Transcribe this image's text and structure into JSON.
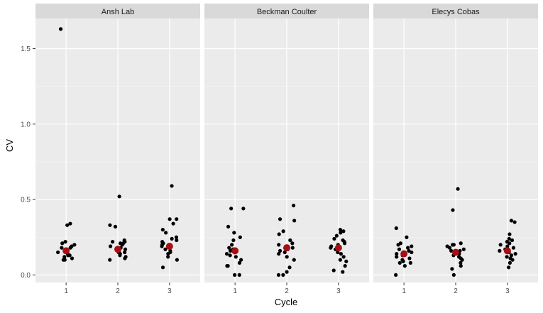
{
  "chart_data": {
    "type": "scatter",
    "xlabel": "Cycle",
    "ylabel": "CV",
    "x_categories": [
      "1",
      "2",
      "3"
    ],
    "ylim": [
      -0.05,
      1.7
    ],
    "y_ticks": [
      0.0,
      0.5,
      1.0,
      1.5
    ],
    "y_tick_labels": [
      "0.0",
      "0.5",
      "1.0",
      "1.5"
    ],
    "grid": true,
    "point_color": "#000000",
    "mean_color": "#a50f15",
    "panel_background": "#ebebeb",
    "strip_background": "#d9d9d9",
    "panels": [
      {
        "name": "Ansh Lab",
        "groups": [
          {
            "cycle": "1",
            "mean": 0.16,
            "points": [
              1.63,
              0.34,
              0.33,
              0.22,
              0.21,
              0.19,
              0.18,
              0.17,
              0.16,
              0.15,
              0.15,
              0.14,
              0.13,
              0.12,
              0.11,
              0.1,
              0.1,
              0.18,
              0.2,
              0.13
            ]
          },
          {
            "cycle": "2",
            "mean": 0.17,
            "points": [
              0.52,
              0.33,
              0.32,
              0.23,
              0.22,
              0.22,
              0.21,
              0.2,
              0.19,
              0.18,
              0.17,
              0.16,
              0.15,
              0.14,
              0.13,
              0.12,
              0.11,
              0.1,
              0.21,
              0.15
            ]
          },
          {
            "cycle": "3",
            "mean": 0.19,
            "points": [
              0.59,
              0.37,
              0.37,
              0.34,
              0.3,
              0.28,
              0.25,
              0.24,
              0.23,
              0.22,
              0.21,
              0.2,
              0.19,
              0.17,
              0.16,
              0.15,
              0.14,
              0.12,
              0.1,
              0.05
            ]
          }
        ]
      },
      {
        "name": "Beckman Coulter",
        "groups": [
          {
            "cycle": "1",
            "mean": 0.16,
            "points": [
              0.44,
              0.44,
              0.32,
              0.28,
              0.25,
              0.23,
              0.2,
              0.18,
              0.17,
              0.15,
              0.14,
              0.13,
              0.12,
              0.1,
              0.08,
              0.06,
              0.06,
              0.0,
              0.0,
              0.16
            ]
          },
          {
            "cycle": "2",
            "mean": 0.18,
            "points": [
              0.46,
              0.37,
              0.36,
              0.29,
              0.27,
              0.23,
              0.21,
              0.2,
              0.19,
              0.18,
              0.17,
              0.16,
              0.15,
              0.12,
              0.1,
              0.05,
              0.02,
              0.0,
              0.0,
              0.14
            ]
          },
          {
            "cycle": "3",
            "mean": 0.18,
            "points": [
              0.3,
              0.29,
              0.28,
              0.26,
              0.24,
              0.22,
              0.21,
              0.2,
              0.19,
              0.18,
              0.17,
              0.15,
              0.14,
              0.12,
              0.1,
              0.09,
              0.06,
              0.03,
              0.02,
              0.23
            ]
          }
        ]
      },
      {
        "name": "Elecys Cobas",
        "groups": [
          {
            "cycle": "1",
            "mean": 0.14,
            "points": [
              0.31,
              0.25,
              0.21,
              0.2,
              0.19,
              0.18,
              0.17,
              0.16,
              0.15,
              0.14,
              0.13,
              0.12,
              0.11,
              0.1,
              0.09,
              0.08,
              0.08,
              0.06,
              0.0,
              0.15
            ]
          },
          {
            "cycle": "2",
            "mean": 0.15,
            "points": [
              0.57,
              0.43,
              0.21,
              0.2,
              0.2,
              0.19,
              0.18,
              0.17,
              0.16,
              0.16,
              0.15,
              0.14,
              0.13,
              0.12,
              0.11,
              0.1,
              0.08,
              0.06,
              0.04,
              0.0
            ]
          },
          {
            "cycle": "3",
            "mean": 0.16,
            "points": [
              0.36,
              0.35,
              0.27,
              0.24,
              0.23,
              0.22,
              0.21,
              0.2,
              0.19,
              0.18,
              0.17,
              0.16,
              0.15,
              0.14,
              0.13,
              0.12,
              0.11,
              0.1,
              0.08,
              0.05
            ]
          }
        ]
      }
    ]
  }
}
